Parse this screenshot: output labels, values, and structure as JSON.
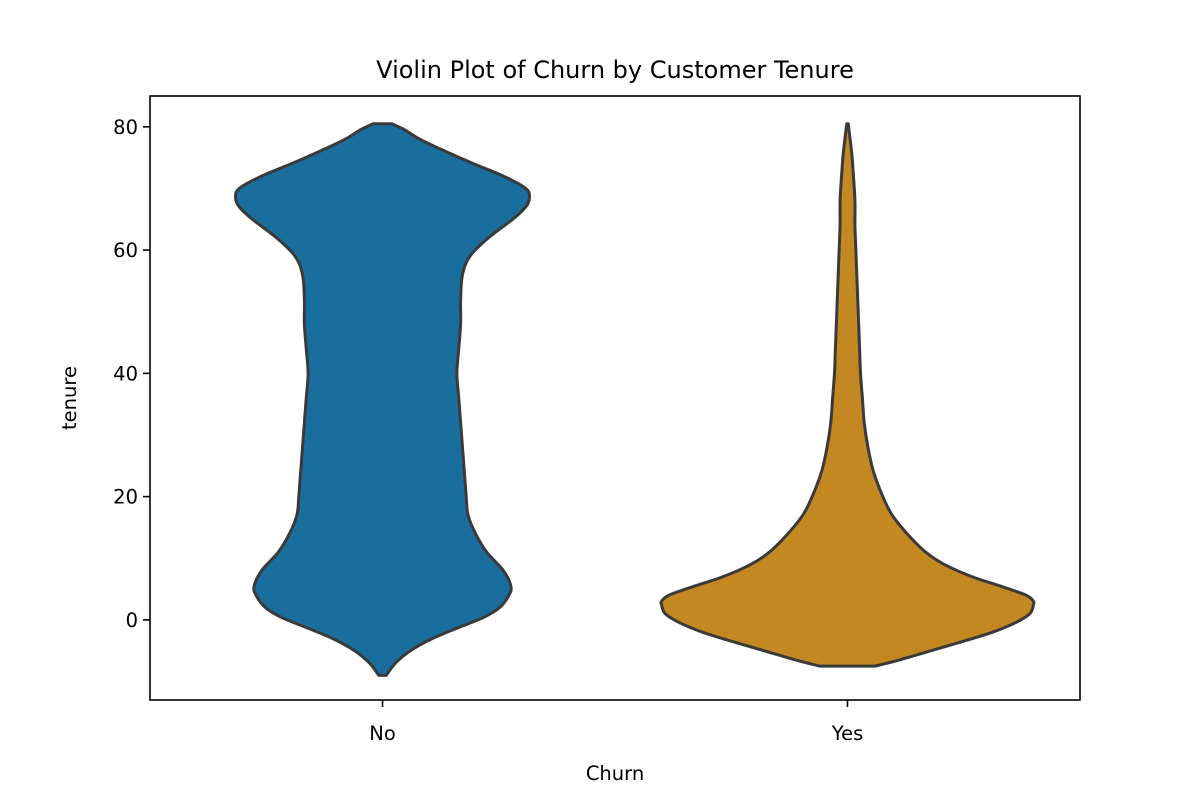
{
  "chart_data": {
    "type": "violin",
    "title": "Violin Plot of Churn by Customer Tenure",
    "xlabel": "Churn",
    "ylabel": "tenure",
    "categories": [
      "No",
      "Yes"
    ],
    "ylim": [
      -13,
      85
    ],
    "yticks": [
      0,
      20,
      40,
      60,
      80
    ],
    "grid": false,
    "legend": "none",
    "colors": {
      "No": "#1a6e9e",
      "Yes": "#c38821",
      "outline": "#3a3a3a",
      "axes": "#000000"
    },
    "series": [
      {
        "category": "No",
        "range": [
          -9,
          80.5
        ],
        "density_profile": [
          [
            -9,
            0.02
          ],
          [
            -7,
            0.07
          ],
          [
            -5,
            0.15
          ],
          [
            -3,
            0.27
          ],
          [
            -1,
            0.43
          ],
          [
            0.5,
            0.55
          ],
          [
            2,
            0.63
          ],
          [
            4,
            0.68
          ],
          [
            5.5,
            0.69
          ],
          [
            8,
            0.65
          ],
          [
            11,
            0.56
          ],
          [
            14,
            0.5
          ],
          [
            17,
            0.46
          ],
          [
            20,
            0.45
          ],
          [
            24,
            0.44
          ],
          [
            28,
            0.43
          ],
          [
            32,
            0.42
          ],
          [
            36,
            0.41
          ],
          [
            40,
            0.4
          ],
          [
            44,
            0.41
          ],
          [
            48,
            0.42
          ],
          [
            52,
            0.42
          ],
          [
            56,
            0.43
          ],
          [
            59,
            0.47
          ],
          [
            62,
            0.57
          ],
          [
            65,
            0.7
          ],
          [
            67,
            0.77
          ],
          [
            68.5,
            0.79
          ],
          [
            70,
            0.77
          ],
          [
            72,
            0.65
          ],
          [
            74,
            0.49
          ],
          [
            76,
            0.34
          ],
          [
            78,
            0.2
          ],
          [
            79.5,
            0.12
          ],
          [
            80.5,
            0.05
          ]
        ]
      },
      {
        "category": "Yes",
        "range": [
          -7.5,
          80.5
        ],
        "density_profile": [
          [
            -7.5,
            0.15
          ],
          [
            -6.5,
            0.28
          ],
          [
            -5,
            0.45
          ],
          [
            -3.5,
            0.62
          ],
          [
            -2,
            0.78
          ],
          [
            -0.5,
            0.9
          ],
          [
            1,
            0.98
          ],
          [
            2.5,
            1.0
          ],
          [
            3,
            1.0
          ],
          [
            4,
            0.96
          ],
          [
            5.5,
            0.82
          ],
          [
            7,
            0.67
          ],
          [
            9,
            0.52
          ],
          [
            11,
            0.42
          ],
          [
            14,
            0.32
          ],
          [
            17,
            0.24
          ],
          [
            20,
            0.19
          ],
          [
            24,
            0.14
          ],
          [
            28,
            0.11
          ],
          [
            32,
            0.09
          ],
          [
            36,
            0.08
          ],
          [
            40,
            0.07
          ],
          [
            44,
            0.065
          ],
          [
            48,
            0.06
          ],
          [
            52,
            0.055
          ],
          [
            56,
            0.05
          ],
          [
            60,
            0.045
          ],
          [
            64,
            0.04
          ],
          [
            68,
            0.04
          ],
          [
            72,
            0.032
          ],
          [
            75,
            0.025
          ],
          [
            77,
            0.018
          ],
          [
            79,
            0.01
          ],
          [
            80.5,
            0.004
          ]
        ]
      }
    ]
  }
}
